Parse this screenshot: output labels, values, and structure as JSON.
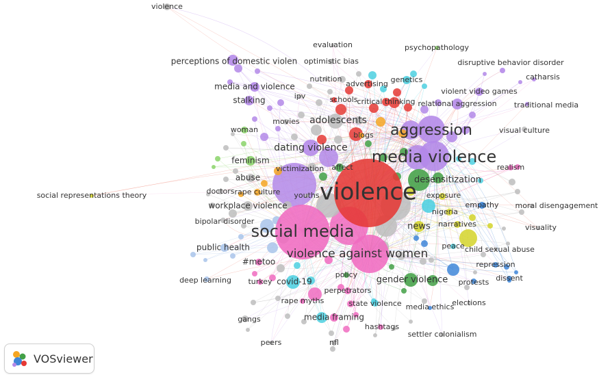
{
  "app": {
    "name": "VOSviewer"
  },
  "colors": {
    "red": "#e53935",
    "purple": "#b388e8",
    "pink": "#f06bc0",
    "green": "#43a047",
    "blue": "#3f86d8",
    "cyan": "#4dd0e1",
    "orange": "#f5a623",
    "yellow": "#d4d42a",
    "grey": "#bdbdbd",
    "lightgreen": "#8bd46a",
    "lightblue": "#a9c4ea",
    "edge_purple": "#c9a8f0",
    "edge_red": "#f08a7a",
    "edge_pink": "#f3a6d6"
  },
  "keywords": [
    {
      "label": "violence",
      "cluster": "grey"
    },
    {
      "label": "perceptions of domestic violen",
      "cluster": "purple"
    },
    {
      "label": "evaluation",
      "cluster": "grey"
    },
    {
      "label": "optimistic bias",
      "cluster": "grey"
    },
    {
      "label": "psychopathology",
      "cluster": "lightgreen"
    },
    {
      "label": "disruptive behavior disorder",
      "cluster": "purple"
    },
    {
      "label": "nutrition",
      "cluster": "grey"
    },
    {
      "label": "advertising",
      "cluster": "red"
    },
    {
      "label": "genetics",
      "cluster": "cyan"
    },
    {
      "label": "catharsis",
      "cluster": "purple"
    },
    {
      "label": "media and violence",
      "cluster": "purple"
    },
    {
      "label": "violent video games",
      "cluster": "purple"
    },
    {
      "label": "ipv",
      "cluster": "grey"
    },
    {
      "label": "schools",
      "cluster": "red"
    },
    {
      "label": "critical thinking",
      "cluster": "red"
    },
    {
      "label": "stalking",
      "cluster": "purple"
    },
    {
      "label": "relational aggression",
      "cluster": "purple"
    },
    {
      "label": "traditional media",
      "cluster": "purple"
    },
    {
      "label": "movies",
      "cluster": "grey"
    },
    {
      "label": "adolescents",
      "cluster": "grey"
    },
    {
      "label": "aggression",
      "cluster": "purple"
    },
    {
      "label": "woman",
      "cluster": "lightgreen"
    },
    {
      "label": "blogs",
      "cluster": "orange"
    },
    {
      "label": "visual culture",
      "cluster": "grey"
    },
    {
      "label": "dating violence",
      "cluster": "purple"
    },
    {
      "label": "media violence",
      "cluster": "purple"
    },
    {
      "label": "feminism",
      "cluster": "lightgreen"
    },
    {
      "label": "victimization",
      "cluster": "purple"
    },
    {
      "label": "affect",
      "cluster": "green"
    },
    {
      "label": "realism",
      "cluster": "pink"
    },
    {
      "label": "abuse",
      "cluster": "grey"
    },
    {
      "label": "desensitization",
      "cluster": "green"
    },
    {
      "label": "violence",
      "cluster": "red"
    },
    {
      "label": "doctors",
      "cluster": "grey"
    },
    {
      "label": "rape culture",
      "cluster": "orange"
    },
    {
      "label": "youths",
      "cluster": "grey"
    },
    {
      "label": "exposure",
      "cluster": "yellow"
    },
    {
      "label": "social representations theory",
      "cluster": "yellow"
    },
    {
      "label": "empathy",
      "cluster": "blue"
    },
    {
      "label": "moral disengagement",
      "cluster": "grey"
    },
    {
      "label": "workplace violence",
      "cluster": "grey"
    },
    {
      "label": "nigeria",
      "cluster": "cyan"
    },
    {
      "label": "bipolar disorder",
      "cluster": "grey"
    },
    {
      "label": "news",
      "cluster": "yellow"
    },
    {
      "label": "narratives",
      "cluster": "yellow"
    },
    {
      "label": "visuality",
      "cluster": "grey"
    },
    {
      "label": "social media",
      "cluster": "pink"
    },
    {
      "label": "public health",
      "cluster": "lightblue"
    },
    {
      "label": "peace",
      "cluster": "cyan"
    },
    {
      "label": "child sexual abuse",
      "cluster": "grey"
    },
    {
      "label": "violence against women",
      "cluster": "pink"
    },
    {
      "label": "#metoo",
      "cluster": "pink"
    },
    {
      "label": "repression",
      "cluster": "blue"
    },
    {
      "label": "deep learning",
      "cluster": "lightblue"
    },
    {
      "label": "turkey",
      "cluster": "pink"
    },
    {
      "label": "covid-19",
      "cluster": "cyan"
    },
    {
      "label": "policy",
      "cluster": "green"
    },
    {
      "label": "gender violence",
      "cluster": "green"
    },
    {
      "label": "protests",
      "cluster": "blue"
    },
    {
      "label": "dissent",
      "cluster": "blue"
    },
    {
      "label": "perpetrators",
      "cluster": "pink"
    },
    {
      "label": "rape myths",
      "cluster": "pink"
    },
    {
      "label": "state violence",
      "cluster": "cyan"
    },
    {
      "label": "elections",
      "cluster": "grey"
    },
    {
      "label": "media ethics",
      "cluster": "blue"
    },
    {
      "label": "media framing",
      "cluster": "pink"
    },
    {
      "label": "gangs",
      "cluster": "grey"
    },
    {
      "label": "hashtags",
      "cluster": "pink"
    },
    {
      "label": "settler colonialism",
      "cluster": "grey"
    },
    {
      "label": "peers",
      "cluster": "grey"
    },
    {
      "label": "nfl",
      "cluster": "grey"
    }
  ]
}
